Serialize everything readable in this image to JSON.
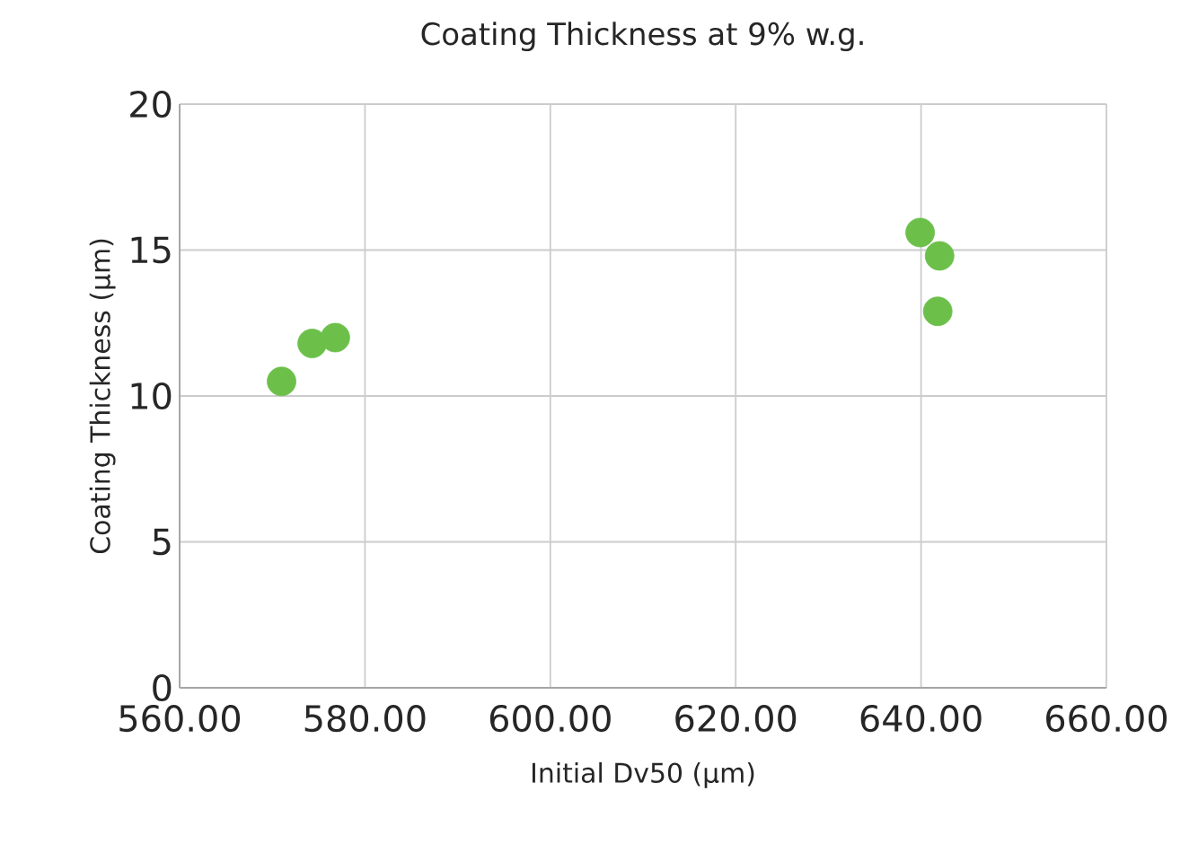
{
  "chart_data": {
    "type": "scatter",
    "title": "Coating Thickness at 9% w.g.",
    "xlabel": "Initial Dv50 (µm)",
    "ylabel": "Coating Thickness (µm)",
    "x": [
      571.0,
      574.3,
      576.8,
      639.9,
      642.0,
      641.8
    ],
    "values": [
      10.5,
      11.8,
      12.0,
      15.6,
      14.8,
      12.9
    ],
    "color": "#6cc04a",
    "marker": "circle",
    "xlim": [
      560,
      660
    ],
    "xticks": [
      {
        "value": 560,
        "label": "560.00"
      },
      {
        "value": 580,
        "label": "580.00"
      },
      {
        "value": 600,
        "label": "600.00"
      },
      {
        "value": 620,
        "label": "620.00"
      },
      {
        "value": 640,
        "label": "640.00"
      },
      {
        "value": 660,
        "label": "660.00"
      }
    ],
    "ylim": [
      0,
      20
    ],
    "yticks": [
      0,
      5,
      10,
      15,
      20
    ],
    "grid": true
  }
}
